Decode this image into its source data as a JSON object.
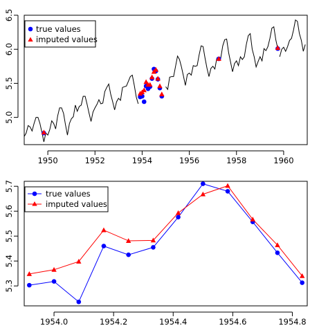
{
  "chart_data": [
    {
      "type": "line",
      "xlim": [
        1949.0,
        1961.0
      ],
      "ylim": [
        4.6,
        6.5
      ],
      "x_ticks": [
        "1950",
        "1952",
        "1954",
        "1956",
        "1958",
        "1960"
      ],
      "y_ticks": [
        "5.0",
        "5.5",
        "6.0",
        "6.5"
      ],
      "legend": {
        "position": "top-left",
        "entries": [
          "true values",
          "imputed values"
        ]
      },
      "series": [
        {
          "kind": "line",
          "color": "#000000",
          "x": [
            1949.0,
            1949.083,
            1949.167,
            1949.25,
            1949.333,
            1949.417,
            1949.5,
            1949.583,
            1949.667,
            1949.75,
            1949.833,
            1949.917,
            1950.0,
            1950.083,
            1950.167,
            1950.25,
            1950.333,
            1950.417,
            1950.5,
            1950.583,
            1950.667,
            1950.75,
            1950.833,
            1950.917,
            1951.0,
            1951.083,
            1951.167,
            1951.25,
            1951.333,
            1951.417,
            1951.5,
            1951.583,
            1951.667,
            1951.75,
            1951.833,
            1951.917,
            1952.0,
            1952.083,
            1952.167,
            1952.25,
            1952.333,
            1952.417,
            1952.5,
            1952.583,
            1952.667,
            1952.75,
            1952.833,
            1952.917,
            1953.0,
            1953.083,
            1953.167,
            1953.25,
            1953.333,
            1953.417,
            1953.5,
            1953.583,
            1953.667,
            1953.75,
            1953.833
          ],
          "y": [
            4.72,
            4.77,
            4.88,
            4.86,
            4.8,
            4.91,
            5.0,
            5.0,
            4.91,
            4.78,
            4.64,
            4.77,
            4.74,
            4.82,
            4.95,
            4.91,
            4.83,
            5.02,
            5.14,
            5.14,
            5.06,
            4.89,
            4.74,
            4.91,
            4.98,
            5.01,
            5.18,
            5.09,
            5.16,
            5.18,
            5.31,
            5.31,
            5.19,
            5.06,
            4.94,
            5.08,
            5.14,
            5.19,
            5.26,
            5.2,
            5.21,
            5.38,
            5.44,
            5.49,
            5.34,
            5.23,
            5.11,
            5.23,
            5.28,
            5.25,
            5.44,
            5.45,
            5.46,
            5.53,
            5.6,
            5.62,
            5.47,
            5.3,
            5.2
          ]
        },
        {
          "kind": "line",
          "color": "#000000",
          "x": [
            1955.0,
            1955.083,
            1955.167,
            1955.25,
            1955.333,
            1955.417,
            1955.5,
            1955.583,
            1955.667,
            1955.75,
            1955.833,
            1955.917,
            1956.0,
            1956.083,
            1956.167,
            1956.25,
            1956.333,
            1956.417,
            1956.5,
            1956.583,
            1956.667,
            1956.75,
            1956.833,
            1956.917,
            1957.0,
            1957.083,
            1957.167,
            1957.25,
            1957.333,
            1957.417,
            1957.5,
            1957.583,
            1957.667,
            1957.75,
            1957.833,
            1957.917,
            1958.0,
            1958.083,
            1958.167,
            1958.25,
            1958.333,
            1958.417,
            1958.5,
            1958.583,
            1958.667,
            1958.75,
            1958.833,
            1958.917,
            1959.0,
            1959.083,
            1959.167,
            1959.25,
            1959.333,
            1959.417,
            1959.5,
            1959.583,
            1959.667,
            1959.75
          ],
          "y": [
            5.45,
            5.41,
            5.59,
            5.6,
            5.6,
            5.75,
            5.9,
            5.85,
            5.74,
            5.61,
            5.47,
            5.63,
            5.65,
            5.62,
            5.76,
            5.75,
            5.76,
            5.92,
            6.05,
            6.04,
            5.87,
            5.72,
            5.6,
            5.72,
            5.75,
            5.71,
            5.87,
            5.85,
            5.87,
            6.05,
            6.14,
            6.15,
            5.95,
            5.81,
            5.67,
            5.79,
            5.83,
            5.76,
            5.89,
            5.85,
            5.89,
            6.07,
            6.2,
            6.23,
            6.0,
            5.89,
            5.74,
            5.82,
            5.89,
            5.83,
            6.01,
            5.98,
            6.04,
            6.16,
            6.31,
            6.33,
            6.14,
            6.01
          ]
        },
        {
          "kind": "line",
          "color": "#000000",
          "x": [
            1959.833,
            1959.917,
            1960.0,
            1960.083,
            1960.167,
            1960.25,
            1960.333,
            1960.417,
            1960.5,
            1960.583,
            1960.667,
            1960.75,
            1960.833,
            1960.917
          ],
          "y": [
            5.89,
            6.0,
            6.03,
            5.97,
            6.04,
            6.13,
            6.16,
            6.28,
            6.43,
            6.41,
            6.23,
            6.13,
            5.97,
            6.07
          ]
        },
        {
          "kind": "points",
          "name": "true values",
          "color": "#0000ff",
          "x": [
            1949.833,
            1953.917,
            1954.0,
            1954.083,
            1954.167,
            1954.25,
            1954.333,
            1954.417,
            1954.5,
            1954.583,
            1954.667,
            1954.75,
            1954.833,
            1957.25,
            1959.75
          ],
          "y": [
            4.77,
            5.3,
            5.31,
            5.23,
            5.46,
            5.42,
            5.45,
            5.57,
            5.71,
            5.68,
            5.56,
            5.43,
            5.31,
            5.86,
            6.01
          ]
        },
        {
          "kind": "points",
          "name": "imputed values",
          "color": "#ff0000",
          "x": [
            1949.833,
            1953.917,
            1954.0,
            1954.083,
            1954.167,
            1954.25,
            1954.333,
            1954.417,
            1954.5,
            1954.583,
            1954.667,
            1954.75,
            1954.833,
            1957.25,
            1959.75
          ],
          "y": [
            4.78,
            5.35,
            5.37,
            5.4,
            5.52,
            5.48,
            5.48,
            5.59,
            5.67,
            5.7,
            5.57,
            5.46,
            5.34,
            5.86,
            6.02
          ]
        }
      ]
    },
    {
      "type": "line",
      "xlim": [
        1953.9,
        1954.85
      ],
      "ylim": [
        5.22,
        5.72
      ],
      "x_ticks": [
        "1954.0",
        "1954.2",
        "1954.4",
        "1954.6",
        "1954.8"
      ],
      "y_ticks": [
        "5.3",
        "5.4",
        "5.5",
        "5.6",
        "5.7"
      ],
      "legend": {
        "position": "top-left",
        "entries": [
          "true values",
          "imputed values"
        ]
      },
      "series": [
        {
          "name": "true values",
          "color": "#0000ff",
          "marker": "circle",
          "x": [
            1953.917,
            1954.0,
            1954.083,
            1954.167,
            1954.25,
            1954.333,
            1954.417,
            1954.5,
            1954.583,
            1954.667,
            1954.75,
            1954.833
          ],
          "y": [
            5.303,
            5.318,
            5.236,
            5.46,
            5.425,
            5.455,
            5.576,
            5.71,
            5.68,
            5.557,
            5.433,
            5.313
          ]
        },
        {
          "name": "imputed values",
          "color": "#ff0000",
          "marker": "triangle",
          "x": [
            1953.917,
            1954.0,
            1954.083,
            1954.167,
            1954.25,
            1954.333,
            1954.417,
            1954.5,
            1954.583,
            1954.667,
            1954.75,
            1954.833
          ],
          "y": [
            5.348,
            5.365,
            5.398,
            5.524,
            5.481,
            5.483,
            5.593,
            5.668,
            5.702,
            5.567,
            5.464,
            5.34
          ]
        }
      ]
    }
  ]
}
